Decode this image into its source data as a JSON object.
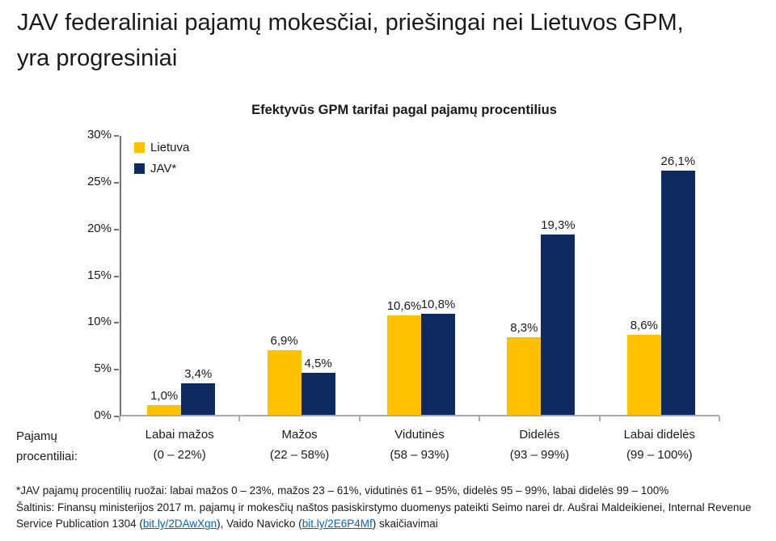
{
  "page": {
    "title_line1": "JAV federaliniai pajamų mokesčiai, priešingai nei Lietuvos GPM,",
    "title_line2": "yra progresiniai"
  },
  "chart_data": {
    "type": "bar",
    "title": "Efektyvūs GPM tarifai pagal pajamų procentilius",
    "categories": [
      "Labai mažos",
      "Mažos",
      "Vidutinės",
      "Didelės",
      "Labai didelės"
    ],
    "category_sublabels": [
      "(0 – 22%)",
      "(22 – 58%)",
      "(58 – 93%)",
      "(93 – 99%)",
      "(99 – 100%)"
    ],
    "series": [
      {
        "name": "Lietuva",
        "color": "#FFC000",
        "values": [
          1.0,
          6.9,
          10.6,
          8.3,
          8.6
        ],
        "labels": [
          "1,0%",
          "6,9%",
          "10,6%",
          "8,3%",
          "8,6%"
        ]
      },
      {
        "name": "JAV*",
        "color": "#0F2A61",
        "values": [
          3.4,
          4.5,
          10.8,
          19.3,
          26.1
        ],
        "labels": [
          "3,4%",
          "4,5%",
          "10,8%",
          "19,3%",
          "26,1%"
        ]
      }
    ],
    "ylim": [
      0,
      30
    ],
    "ytick_step": 5,
    "ytick_labels": [
      "0%",
      "5%",
      "10%",
      "15%",
      "20%",
      "25%",
      "30%"
    ],
    "axis_label_line1": "Pajamų",
    "axis_label_line2": "procentiliai:",
    "legend_position": "top-left",
    "grid": false
  },
  "footer": {
    "footnote": "*JAV pajamų procentilių ruožai: labai mažos 0 – 23%, mažos 23 – 61%, vidutinės 61 – 95%, didelės 95 – 99%, labai didelės 99 – 100%",
    "source_prefix": "Šaltinis: Finansų ministerijos 2017 m. pajamų ir mokesčių naštos pasiskirstymo duomenys pateikti Seimo narei dr. Aušrai Maldeikienei, Internal Revenue Service Publication 1304 (",
    "source_link1": "bit.ly/2DAwXgn",
    "source_middle": "), Vaido Navicko (",
    "source_link2": "bit.ly/2E6P4Mf",
    "source_suffix": ") skaičiavimai"
  }
}
